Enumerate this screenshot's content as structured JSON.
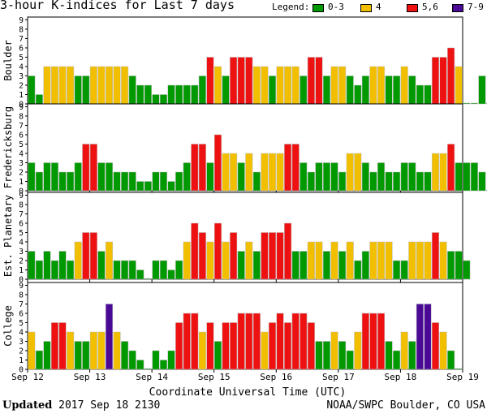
{
  "title": "3-hour K-indices for Last 7 days",
  "legend": {
    "label": "Legend:",
    "items": [
      {
        "label": "0-3",
        "color": "#009900"
      },
      {
        "label": "4",
        "color": "#f2bf00"
      },
      {
        "label": "5,6",
        "color": "#ee1111"
      },
      {
        "label": "7-9",
        "color": "#4b0a96"
      }
    ]
  },
  "footer": {
    "updated_label": "Updated",
    "updated_value": "2017 Sep 18 2130",
    "credit": "NOAA/SWPC Boulder, CO USA"
  },
  "chart_data": {
    "type": "bar",
    "xlabel": "Coordinate Universal Time (UTC)",
    "x_ticks": [
      "Sep 12",
      "Sep 13",
      "Sep 14",
      "Sep 15",
      "Sep 16",
      "Sep 17",
      "Sep 18",
      "Sep 19"
    ],
    "y_ticks": [
      "0",
      "1",
      "2",
      "3",
      "4",
      "5",
      "6",
      "7",
      "8",
      "9"
    ],
    "ylim": [
      0,
      9
    ],
    "bars_per_day": 8,
    "color_scale": {
      "0-3": "#009900",
      "4": "#f2bf00",
      "5,6": "#ee1111",
      "7-9": "#4b0a96"
    },
    "panels": [
      {
        "name": "Boulder",
        "values": [
          3,
          1,
          4,
          4,
          4,
          4,
          3,
          3,
          4,
          4,
          4,
          4,
          4,
          3,
          2,
          2,
          1,
          1,
          2,
          2,
          2,
          2,
          3,
          5,
          4,
          3,
          5,
          5,
          5,
          4,
          4,
          3,
          4,
          4,
          4,
          3,
          5,
          5,
          3,
          4,
          4,
          3,
          2,
          3,
          4,
          4,
          3,
          3,
          4,
          3,
          2,
          2,
          5,
          5,
          6,
          4,
          0,
          0,
          3,
          0
        ]
      },
      {
        "name": "Fredericksburg",
        "values": [
          3,
          2,
          3,
          3,
          2,
          2,
          3,
          5,
          5,
          3,
          3,
          2,
          2,
          2,
          1,
          1,
          2,
          2,
          1,
          2,
          3,
          5,
          5,
          3,
          6,
          4,
          4,
          3,
          4,
          2,
          4,
          4,
          4,
          5,
          5,
          3,
          2,
          3,
          3,
          3,
          2,
          4,
          4,
          3,
          2,
          3,
          2,
          2,
          3,
          3,
          2,
          2,
          4,
          4,
          5,
          3,
          3,
          3,
          2,
          0
        ]
      },
      {
        "name": "Est. Planetary",
        "values": [
          3,
          2,
          3,
          2,
          3,
          2,
          4,
          5,
          5,
          3,
          4,
          2,
          2,
          2,
          1,
          0,
          2,
          2,
          1,
          2,
          4,
          6,
          5,
          4,
          6,
          4,
          5,
          3,
          4,
          3,
          5,
          5,
          5,
          6,
          3,
          3,
          4,
          4,
          3,
          4,
          3,
          4,
          2,
          3,
          4,
          4,
          4,
          2,
          2,
          4,
          4,
          4,
          5,
          4,
          3,
          3,
          2
        ]
      },
      {
        "name": "College",
        "values": [
          4,
          2,
          3,
          5,
          5,
          4,
          3,
          3,
          4,
          4,
          7,
          4,
          3,
          2,
          1,
          0,
          2,
          1,
          2,
          5,
          6,
          6,
          4,
          5,
          3,
          5,
          5,
          6,
          6,
          6,
          4,
          5,
          6,
          5,
          6,
          6,
          5,
          3,
          3,
          4,
          3,
          2,
          4,
          6,
          6,
          6,
          3,
          2,
          4,
          3,
          7,
          7,
          5,
          4,
          2,
          0
        ]
      }
    ]
  }
}
